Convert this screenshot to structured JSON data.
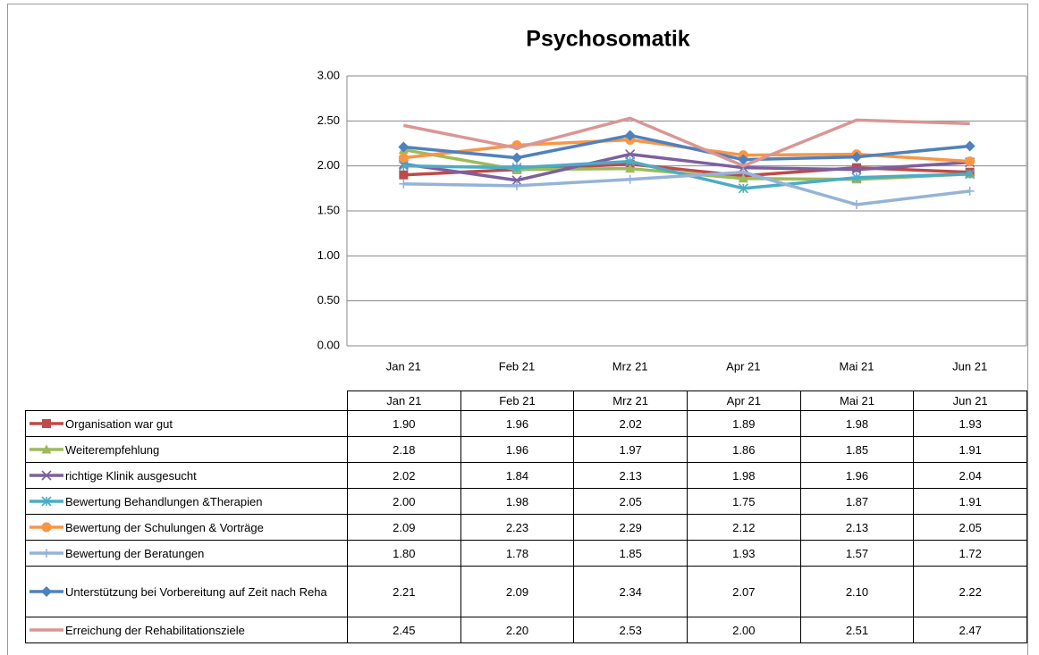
{
  "chart_data": {
    "type": "line",
    "title": "Psychosomatik",
    "categories": [
      "Jan 21",
      "Feb 21",
      "Mrz 21",
      "Apr 21",
      "Mai 21",
      "Jun 21"
    ],
    "ylim": [
      0,
      3
    ],
    "yticks": [
      {
        "value": 0,
        "label": "0.00"
      },
      {
        "value": 0.5,
        "label": "0.50"
      },
      {
        "value": 1,
        "label": "1.00"
      },
      {
        "value": 1.5,
        "label": "1.50"
      },
      {
        "value": 2,
        "label": "2.00"
      },
      {
        "value": 2.5,
        "label": "2.50"
      },
      {
        "value": 3,
        "label": "3.00"
      }
    ],
    "grid": true,
    "series": [
      {
        "name": "Organisation war gut",
        "color": "#be4b48",
        "marker": "square",
        "values": [
          1.9,
          1.96,
          2.02,
          1.89,
          1.98,
          1.93
        ],
        "value_labels": [
          "1.90",
          "1.96",
          "2.02",
          "1.89",
          "1.98",
          "1.93"
        ]
      },
      {
        "name": "Weiterempfehlung",
        "color": "#9bbb59",
        "marker": "triangle",
        "values": [
          2.18,
          1.96,
          1.97,
          1.86,
          1.85,
          1.91
        ],
        "value_labels": [
          "2.18",
          "1.96",
          "1.97",
          "1.86",
          "1.85",
          "1.91"
        ]
      },
      {
        "name": "richtige Klinik ausgesucht",
        "color": "#7d5fa0",
        "marker": "x",
        "values": [
          2.02,
          1.84,
          2.13,
          1.98,
          1.96,
          2.04
        ],
        "value_labels": [
          "2.02",
          "1.84",
          "2.13",
          "1.98",
          "1.96",
          "2.04"
        ]
      },
      {
        "name": "Bewertung Behandlungen &Therapien",
        "color": "#4bacc6",
        "marker": "star",
        "values": [
          2.0,
          1.98,
          2.05,
          1.75,
          1.87,
          1.91
        ],
        "value_labels": [
          "2.00",
          "1.98",
          "2.05",
          "1.75",
          "1.87",
          "1.91"
        ]
      },
      {
        "name": "Bewertung der Schulungen & Vorträge",
        "color": "#f79646",
        "marker": "circle",
        "values": [
          2.09,
          2.23,
          2.29,
          2.12,
          2.13,
          2.05
        ],
        "value_labels": [
          "2.09",
          "2.23",
          "2.29",
          "2.12",
          "2.13",
          "2.05"
        ]
      },
      {
        "name": "Bewertung der Beratungen",
        "color": "#95b3d7",
        "marker": "plus",
        "values": [
          1.8,
          1.78,
          1.85,
          1.93,
          1.57,
          1.72
        ],
        "value_labels": [
          "1.80",
          "1.78",
          "1.85",
          "1.93",
          "1.57",
          "1.72"
        ]
      },
      {
        "name": "Unterstützung bei Vorbereitung auf Zeit nach Reha",
        "color": "#4f81bd",
        "marker": "diamond",
        "values": [
          2.21,
          2.09,
          2.34,
          2.07,
          2.1,
          2.22
        ],
        "value_labels": [
          "2.21",
          "2.09",
          "2.34",
          "2.07",
          "2.10",
          "2.22"
        ]
      },
      {
        "name": "Erreichung der Rehabilitationsziele",
        "color": "#d99694",
        "marker": "none",
        "values": [
          2.45,
          2.2,
          2.53,
          2.0,
          2.51,
          2.47
        ],
        "value_labels": [
          "2.45",
          "2.20",
          "2.53",
          "2.00",
          "2.51",
          "2.47"
        ]
      }
    ]
  }
}
